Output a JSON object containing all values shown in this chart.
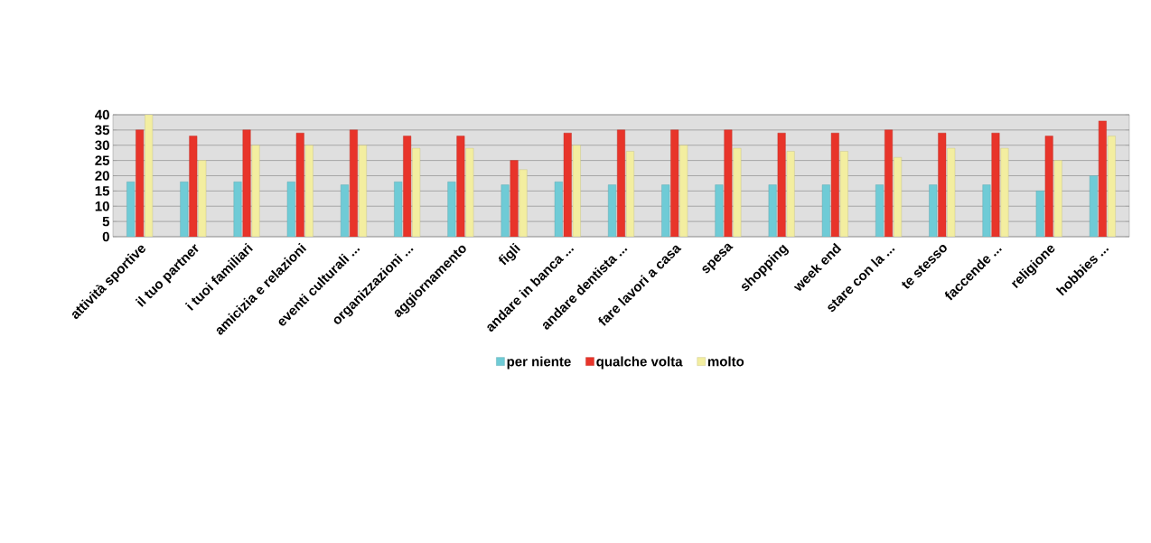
{
  "chart_data": {
    "type": "bar",
    "categories": [
      "attività sportive",
      "il tuo partner",
      "i tuoi familiari",
      "amicizia e relazioni",
      "eventi culturali ...",
      "organizzazioni ...",
      "aggiornamento",
      "figli",
      "andare in banca ...",
      "andare dentista ...",
      "fare lavori a casa",
      "spesa",
      "shopping",
      "week end",
      "stare con la ...",
      "te stesso",
      "faccende ...",
      "religione",
      "hobbies ..."
    ],
    "series": [
      {
        "name": "per niente",
        "color": "#6fcbd6",
        "values": [
          18,
          18,
          18,
          18,
          17,
          18,
          18,
          17,
          18,
          17,
          17,
          17,
          17,
          17,
          17,
          17,
          17,
          15,
          20
        ]
      },
      {
        "name": "qualche volta",
        "color": "#e8342a",
        "values": [
          35,
          33,
          35,
          34,
          35,
          33,
          33,
          25,
          34,
          35,
          35,
          35,
          34,
          34,
          35,
          34,
          34,
          33,
          38
        ]
      },
      {
        "name": "molto",
        "color": "#f3eea0",
        "values": [
          40,
          25,
          30,
          30,
          30,
          29,
          29,
          22,
          30,
          28,
          30,
          29,
          28,
          28,
          26,
          29,
          29,
          25,
          33
        ]
      }
    ],
    "ylim": [
      0,
      40
    ],
    "yticks": [
      0,
      5,
      10,
      15,
      20,
      25,
      30,
      35,
      40
    ],
    "grid": "y",
    "legend": "bottom"
  }
}
